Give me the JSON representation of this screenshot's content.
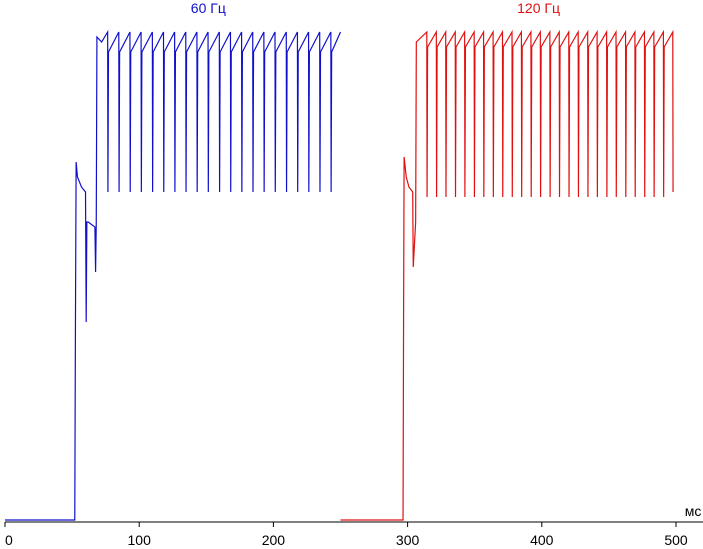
{
  "chart_data": {
    "type": "line",
    "xlabel": "мс",
    "xlim": [
      0,
      500
    ],
    "xticks": [
      0,
      100,
      200,
      300,
      400,
      500
    ],
    "ylim": [
      0,
      100
    ],
    "series": [
      {
        "name": "60 Гц",
        "color": "#1010cc",
        "x": [
          0,
          52,
          52.5,
          53,
          54,
          57,
          60,
          60.5,
          61,
          62,
          67,
          67.5,
          68,
          68.5,
          72,
          76.5,
          76.7,
          77.1,
          84.8,
          85,
          85.4,
          93.1,
          93.3,
          93.7,
          101.4,
          101.6,
          102,
          109.8,
          110,
          110.4,
          118.1,
          118.3,
          118.7,
          126.4,
          126.6,
          127,
          134.7,
          134.9,
          135.3,
          143,
          143.2,
          143.6,
          151.3,
          151.5,
          151.9,
          159.7,
          159.9,
          160.3,
          168,
          168.2,
          168.6,
          176.3,
          176.5,
          176.9,
          184.6,
          184.8,
          185.2,
          192.9,
          193.1,
          193.5,
          201.2,
          201.4,
          201.8,
          209.6,
          209.8,
          210.2,
          217.9,
          218.1,
          218.5,
          226.2,
          226.4,
          226.8,
          234.5,
          234.7,
          235.1,
          242.8,
          243,
          243.4,
          250
        ],
        "values": [
          0.4,
          0.4,
          40,
          72,
          69,
          67,
          66,
          40,
          60,
          60,
          59,
          50,
          60,
          97,
          96,
          98,
          66,
          94,
          98,
          66,
          94,
          98,
          66,
          94,
          98,
          66,
          94,
          98,
          66,
          94,
          98,
          66,
          94,
          98,
          66,
          94,
          98,
          66,
          94,
          98,
          66,
          94,
          98,
          66,
          94,
          98,
          66,
          94,
          98,
          66,
          94,
          98,
          66,
          94,
          98,
          66,
          94,
          98,
          66,
          94,
          98,
          66,
          94,
          98,
          66,
          94,
          98,
          66,
          94,
          98,
          66,
          94,
          98,
          66,
          94,
          98,
          66,
          94,
          98
        ]
      },
      {
        "name": "120 Гц",
        "color": "#e01010",
        "x": [
          250,
          296.6,
          297,
          297.4,
          299,
          301,
          303.8,
          304.2,
          306,
          306.5,
          314.3,
          314.5,
          314.9,
          321.4,
          321.6,
          322,
          328.4,
          328.6,
          329,
          335.5,
          335.7,
          336.1,
          342.5,
          342.7,
          343.1,
          349.6,
          349.8,
          350.2,
          356.6,
          356.8,
          357.2,
          363.7,
          363.9,
          364.3,
          370.7,
          370.9,
          371.3,
          377.8,
          378,
          378.4,
          384.8,
          385,
          385.4,
          391.9,
          392.1,
          392.5,
          398.9,
          399.1,
          399.5,
          406,
          406.2,
          406.6,
          413,
          413.2,
          413.6,
          420.1,
          420.3,
          420.7,
          427.1,
          427.3,
          427.7,
          434.2,
          434.4,
          434.8,
          441.2,
          441.4,
          441.8,
          448.3,
          448.5,
          448.9,
          455.3,
          455.5,
          455.9,
          462.4,
          462.6,
          463,
          469.4,
          469.6,
          470,
          476.5,
          476.7,
          477.1,
          483.5,
          483.7,
          484.1,
          490.6,
          490.8,
          491.2,
          497.6,
          497.8
        ],
        "values": [
          0.4,
          0.4,
          40,
          73,
          69,
          67,
          66,
          51,
          60,
          96,
          98,
          65,
          95,
          98,
          65,
          95,
          98,
          65,
          95,
          98,
          65,
          95,
          98,
          65,
          95,
          98,
          65,
          95,
          98,
          65,
          95,
          98,
          65,
          95,
          98,
          65,
          95,
          98,
          65,
          95,
          98,
          65,
          95,
          98,
          65,
          95,
          98,
          65,
          95,
          98,
          65,
          95,
          98,
          65,
          95,
          98,
          65,
          95,
          98,
          65,
          95,
          98,
          65,
          95,
          98,
          65,
          95,
          98,
          65,
          95,
          98,
          65,
          95,
          98,
          65,
          95,
          98,
          65,
          95,
          98,
          65,
          95,
          98,
          65,
          95,
          98,
          65,
          95,
          98,
          66
        ]
      }
    ]
  }
}
